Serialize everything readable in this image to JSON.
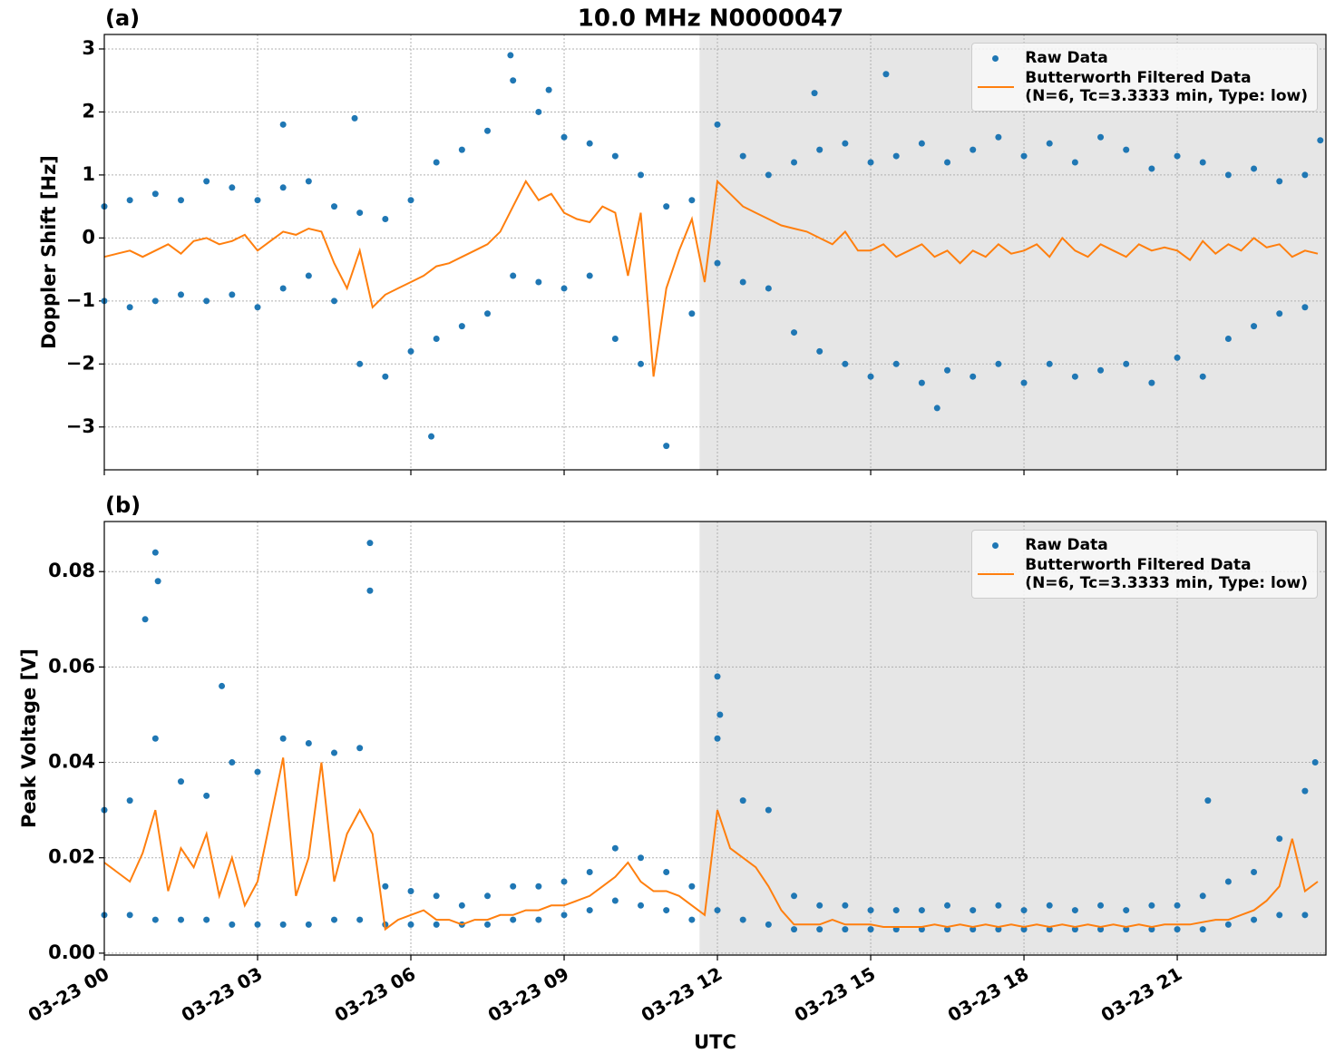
{
  "chart_data": [
    {
      "type": "scatter",
      "title": "10.0 MHz N0000047",
      "panel_label": "(a)",
      "ylabel": "Doppler Shift [Hz]",
      "xlim": [
        0,
        23.91
      ],
      "xticks": [
        0,
        3,
        6,
        9,
        12,
        15,
        18,
        21
      ],
      "xtick_labels": false,
      "ylim": [
        -3.68,
        3.23
      ],
      "yticks": [
        {
          "value": -3,
          "label": "−3"
        },
        {
          "value": -2,
          "label": "−2"
        },
        {
          "value": -1,
          "label": "−1"
        },
        0,
        1,
        2,
        3
      ],
      "grid": true,
      "legend": "upper right",
      "span": [
        11.65,
        23.91
      ],
      "span_color": "#e6e6e6",
      "series": [
        {
          "name": "Raw Data",
          "type": "scatter",
          "color": "#1f77b4",
          "x": [
            0,
            0,
            0.5,
            0.5,
            1,
            1,
            1.5,
            1.5,
            2,
            2,
            2.5,
            2.5,
            3,
            3,
            3.5,
            3.5,
            4,
            4,
            4.5,
            4.5,
            5,
            5,
            5.5,
            5.5,
            6,
            6,
            6.5,
            6.5,
            7,
            7,
            7.5,
            7.5,
            8,
            8,
            8.5,
            8.5,
            9,
            9,
            9.5,
            9.5,
            10,
            10,
            10.5,
            10.5,
            11,
            11,
            11.5,
            11.5,
            12,
            12,
            12.5,
            12.5,
            13,
            13,
            13.5,
            13.5,
            14,
            14,
            14.5,
            14.5,
            15,
            15,
            15.5,
            15.5,
            16,
            16,
            16.5,
            16.5,
            17,
            17,
            17.5,
            17.5,
            18,
            18,
            18.5,
            18.5,
            19,
            19,
            19.5,
            19.5,
            20,
            20,
            20.5,
            20.5,
            21,
            21,
            21.5,
            21.5,
            22,
            22,
            22.5,
            22.5,
            23,
            23,
            23.5,
            23.5,
            3.5,
            4.9,
            6.4,
            7.95,
            8.7,
            13.9,
            15.3,
            16.3,
            23.8
          ],
          "values": [
            0.5,
            -1.0,
            0.6,
            -1.1,
            0.7,
            -1.0,
            0.6,
            -0.9,
            0.9,
            -1.0,
            0.8,
            -0.9,
            0.6,
            -1.1,
            0.8,
            -0.8,
            0.9,
            -0.6,
            0.5,
            -1.0,
            0.4,
            -2.0,
            0.3,
            -2.2,
            0.6,
            -1.8,
            1.2,
            -1.6,
            1.4,
            -1.4,
            1.7,
            -1.2,
            2.5,
            -0.6,
            2.0,
            -0.7,
            1.6,
            -0.8,
            1.5,
            -0.6,
            1.3,
            -1.6,
            1.0,
            -2.0,
            0.5,
            -3.3,
            0.6,
            -1.2,
            1.8,
            -0.4,
            1.3,
            -0.7,
            1.0,
            -0.8,
            1.2,
            -1.5,
            1.4,
            -1.8,
            1.5,
            -2.0,
            1.2,
            -2.2,
            1.3,
            -2.0,
            1.5,
            -2.3,
            1.2,
            -2.1,
            1.4,
            -2.2,
            1.6,
            -2.0,
            1.3,
            -2.3,
            1.5,
            -2.0,
            1.2,
            -2.2,
            1.6,
            -2.1,
            1.4,
            -2.0,
            1.1,
            -2.3,
            1.3,
            -1.9,
            1.2,
            -2.2,
            1.0,
            -1.6,
            1.1,
            -1.4,
            0.9,
            -1.2,
            1.0,
            -1.1,
            1.8,
            1.9,
            -3.15,
            2.9,
            2.35,
            2.3,
            2.6,
            -2.7,
            1.55
          ]
        },
        {
          "name": "Butterworth Filtered Data\n(N=6, Tc=3.3333 min, Type: low)",
          "type": "line",
          "color": "#ff7f0e",
          "x": [
            0,
            0.25,
            0.5,
            0.75,
            1,
            1.25,
            1.5,
            1.75,
            2,
            2.25,
            2.5,
            2.75,
            3,
            3.25,
            3.5,
            3.75,
            4,
            4.25,
            4.5,
            4.75,
            5,
            5.25,
            5.5,
            5.75,
            6,
            6.25,
            6.5,
            6.75,
            7,
            7.25,
            7.5,
            7.75,
            8,
            8.25,
            8.5,
            8.75,
            9,
            9.25,
            9.5,
            9.75,
            10,
            10.25,
            10.5,
            10.75,
            11,
            11.25,
            11.5,
            11.75,
            12,
            12.25,
            12.5,
            12.75,
            13,
            13.25,
            13.5,
            13.75,
            14,
            14.25,
            14.5,
            14.75,
            15,
            15.25,
            15.5,
            15.75,
            16,
            16.25,
            16.5,
            16.75,
            17,
            17.25,
            17.5,
            17.75,
            18,
            18.25,
            18.5,
            18.75,
            19,
            19.25,
            19.5,
            19.75,
            20,
            20.25,
            20.5,
            20.75,
            21,
            21.25,
            21.5,
            21.75,
            22,
            22.25,
            22.5,
            22.75,
            23,
            23.25,
            23.5,
            23.75
          ],
          "values": [
            -0.3,
            -0.25,
            -0.2,
            -0.3,
            -0.2,
            -0.1,
            -0.25,
            -0.05,
            0.0,
            -0.1,
            -0.05,
            0.05,
            -0.2,
            -0.05,
            0.1,
            0.05,
            0.15,
            0.1,
            -0.4,
            -0.8,
            -0.2,
            -1.1,
            -0.9,
            -0.8,
            -0.7,
            -0.6,
            -0.45,
            -0.4,
            -0.3,
            -0.2,
            -0.1,
            0.1,
            0.5,
            0.9,
            0.6,
            0.7,
            0.4,
            0.3,
            0.25,
            0.5,
            0.4,
            -0.6,
            0.4,
            -2.2,
            -0.8,
            -0.2,
            0.3,
            -0.7,
            0.9,
            0.7,
            0.5,
            0.4,
            0.3,
            0.2,
            0.15,
            0.1,
            0.0,
            -0.1,
            0.1,
            -0.2,
            -0.2,
            -0.1,
            -0.3,
            -0.2,
            -0.1,
            -0.3,
            -0.2,
            -0.4,
            -0.2,
            -0.3,
            -0.1,
            -0.25,
            -0.2,
            -0.1,
            -0.3,
            0.0,
            -0.2,
            -0.3,
            -0.1,
            -0.2,
            -0.3,
            -0.1,
            -0.2,
            -0.15,
            -0.2,
            -0.35,
            -0.05,
            -0.25,
            -0.1,
            -0.2,
            0.0,
            -0.15,
            -0.1,
            -0.3,
            -0.2,
            -0.25
          ]
        }
      ]
    },
    {
      "type": "scatter",
      "panel_label": "(b)",
      "ylabel": "Peak Voltage [V]",
      "xlabel": "UTC",
      "xlim": [
        0,
        23.91
      ],
      "xticks": [
        {
          "value": 0,
          "label": "03-23 00"
        },
        {
          "value": 3,
          "label": "03-23 03"
        },
        {
          "value": 6,
          "label": "03-23 06"
        },
        {
          "value": 9,
          "label": "03-23 09"
        },
        {
          "value": 12,
          "label": "03-23 12"
        },
        {
          "value": 15,
          "label": "03-23 15"
        },
        {
          "value": 18,
          "label": "03-23 18"
        },
        {
          "value": 21,
          "label": "03-23 21"
        }
      ],
      "ylim": [
        -0.0004,
        0.0905
      ],
      "yticks": [
        {
          "value": 0,
          "label": "0.00"
        },
        {
          "value": 0.02,
          "label": "0.02"
        },
        {
          "value": 0.04,
          "label": "0.04"
        },
        {
          "value": 0.06,
          "label": "0.06"
        },
        {
          "value": 0.08,
          "label": "0.08"
        }
      ],
      "grid": true,
      "legend": "upper right",
      "span": [
        11.65,
        23.91
      ],
      "span_color": "#e6e6e6",
      "series": [
        {
          "name": "Raw Data",
          "type": "scatter",
          "color": "#1f77b4",
          "x": [
            0,
            0,
            0.5,
            0.5,
            1,
            1,
            1.5,
            1.5,
            2,
            2,
            2.5,
            2.5,
            3,
            3,
            3.5,
            3.5,
            4,
            4,
            4.5,
            4.5,
            5,
            5,
            5.5,
            5.5,
            6,
            6,
            6.5,
            6.5,
            7,
            7,
            7.5,
            7.5,
            8,
            8,
            8.5,
            8.5,
            9,
            9,
            9.5,
            9.5,
            10,
            10,
            10.5,
            10.5,
            11,
            11,
            11.5,
            11.5,
            12,
            12,
            12.5,
            12.5,
            13,
            13,
            13.5,
            13.5,
            14,
            14,
            14.5,
            14.5,
            15,
            15,
            15.5,
            15.5,
            16,
            16,
            16.5,
            16.5,
            17,
            17,
            17.5,
            17.5,
            18,
            18,
            18.5,
            18.5,
            19,
            19,
            19.5,
            19.5,
            20,
            20,
            20.5,
            20.5,
            21,
            21,
            21.5,
            21.5,
            22,
            22,
            22.5,
            22.5,
            23,
            23,
            23.5,
            23.5,
            1.0,
            0.8,
            1.05,
            2.3,
            5.2,
            5.2,
            12.0,
            12.05,
            21.6,
            23.7
          ],
          "values": [
            0.03,
            0.008,
            0.032,
            0.008,
            0.045,
            0.007,
            0.036,
            0.007,
            0.033,
            0.007,
            0.04,
            0.006,
            0.038,
            0.006,
            0.045,
            0.006,
            0.044,
            0.006,
            0.042,
            0.007,
            0.043,
            0.007,
            0.014,
            0.006,
            0.013,
            0.006,
            0.012,
            0.006,
            0.01,
            0.006,
            0.012,
            0.006,
            0.014,
            0.007,
            0.014,
            0.007,
            0.015,
            0.008,
            0.017,
            0.009,
            0.022,
            0.011,
            0.02,
            0.01,
            0.017,
            0.009,
            0.014,
            0.007,
            0.045,
            0.009,
            0.032,
            0.007,
            0.03,
            0.006,
            0.012,
            0.005,
            0.01,
            0.005,
            0.01,
            0.005,
            0.009,
            0.005,
            0.009,
            0.005,
            0.009,
            0.005,
            0.01,
            0.005,
            0.009,
            0.005,
            0.01,
            0.005,
            0.009,
            0.005,
            0.01,
            0.005,
            0.009,
            0.005,
            0.01,
            0.005,
            0.009,
            0.005,
            0.01,
            0.005,
            0.01,
            0.005,
            0.012,
            0.005,
            0.015,
            0.006,
            0.017,
            0.007,
            0.024,
            0.008,
            0.034,
            0.008,
            0.084,
            0.07,
            0.078,
            0.056,
            0.086,
            0.076,
            0.058,
            0.05,
            0.032,
            0.04
          ]
        },
        {
          "name": "Butterworth Filtered Data\n(N=6, Tc=3.3333 min, Type: low)",
          "type": "line",
          "color": "#ff7f0e",
          "x": [
            0,
            0.25,
            0.5,
            0.75,
            1,
            1.25,
            1.5,
            1.75,
            2,
            2.25,
            2.5,
            2.75,
            3,
            3.25,
            3.5,
            3.75,
            4,
            4.25,
            4.5,
            4.75,
            5,
            5.25,
            5.5,
            5.75,
            6,
            6.25,
            6.5,
            6.75,
            7,
            7.25,
            7.5,
            7.75,
            8,
            8.25,
            8.5,
            8.75,
            9,
            9.25,
            9.5,
            9.75,
            10,
            10.25,
            10.5,
            10.75,
            11,
            11.25,
            11.5,
            11.75,
            12,
            12.25,
            12.5,
            12.75,
            13,
            13.25,
            13.5,
            13.75,
            14,
            14.25,
            14.5,
            14.75,
            15,
            15.25,
            15.5,
            15.75,
            16,
            16.25,
            16.5,
            16.75,
            17,
            17.25,
            17.5,
            17.75,
            18,
            18.25,
            18.5,
            18.75,
            19,
            19.25,
            19.5,
            19.75,
            20,
            20.25,
            20.5,
            20.75,
            21,
            21.25,
            21.5,
            21.75,
            22,
            22.25,
            22.5,
            22.75,
            23,
            23.25,
            23.5,
            23.75
          ],
          "values": [
            0.019,
            0.017,
            0.015,
            0.021,
            0.03,
            0.013,
            0.022,
            0.018,
            0.025,
            0.012,
            0.02,
            0.01,
            0.015,
            0.028,
            0.041,
            0.012,
            0.02,
            0.04,
            0.015,
            0.025,
            0.03,
            0.025,
            0.005,
            0.007,
            0.008,
            0.009,
            0.007,
            0.007,
            0.006,
            0.007,
            0.007,
            0.008,
            0.008,
            0.009,
            0.009,
            0.01,
            0.01,
            0.011,
            0.012,
            0.014,
            0.016,
            0.019,
            0.015,
            0.013,
            0.013,
            0.012,
            0.01,
            0.008,
            0.03,
            0.022,
            0.02,
            0.018,
            0.014,
            0.009,
            0.006,
            0.006,
            0.006,
            0.007,
            0.006,
            0.006,
            0.006,
            0.0055,
            0.0055,
            0.0055,
            0.0055,
            0.006,
            0.0055,
            0.006,
            0.0055,
            0.006,
            0.0055,
            0.006,
            0.0055,
            0.006,
            0.0055,
            0.006,
            0.0055,
            0.006,
            0.0055,
            0.006,
            0.0055,
            0.006,
            0.0055,
            0.006,
            0.006,
            0.006,
            0.0065,
            0.007,
            0.007,
            0.008,
            0.009,
            0.011,
            0.014,
            0.024,
            0.013,
            0.015
          ]
        }
      ]
    }
  ]
}
